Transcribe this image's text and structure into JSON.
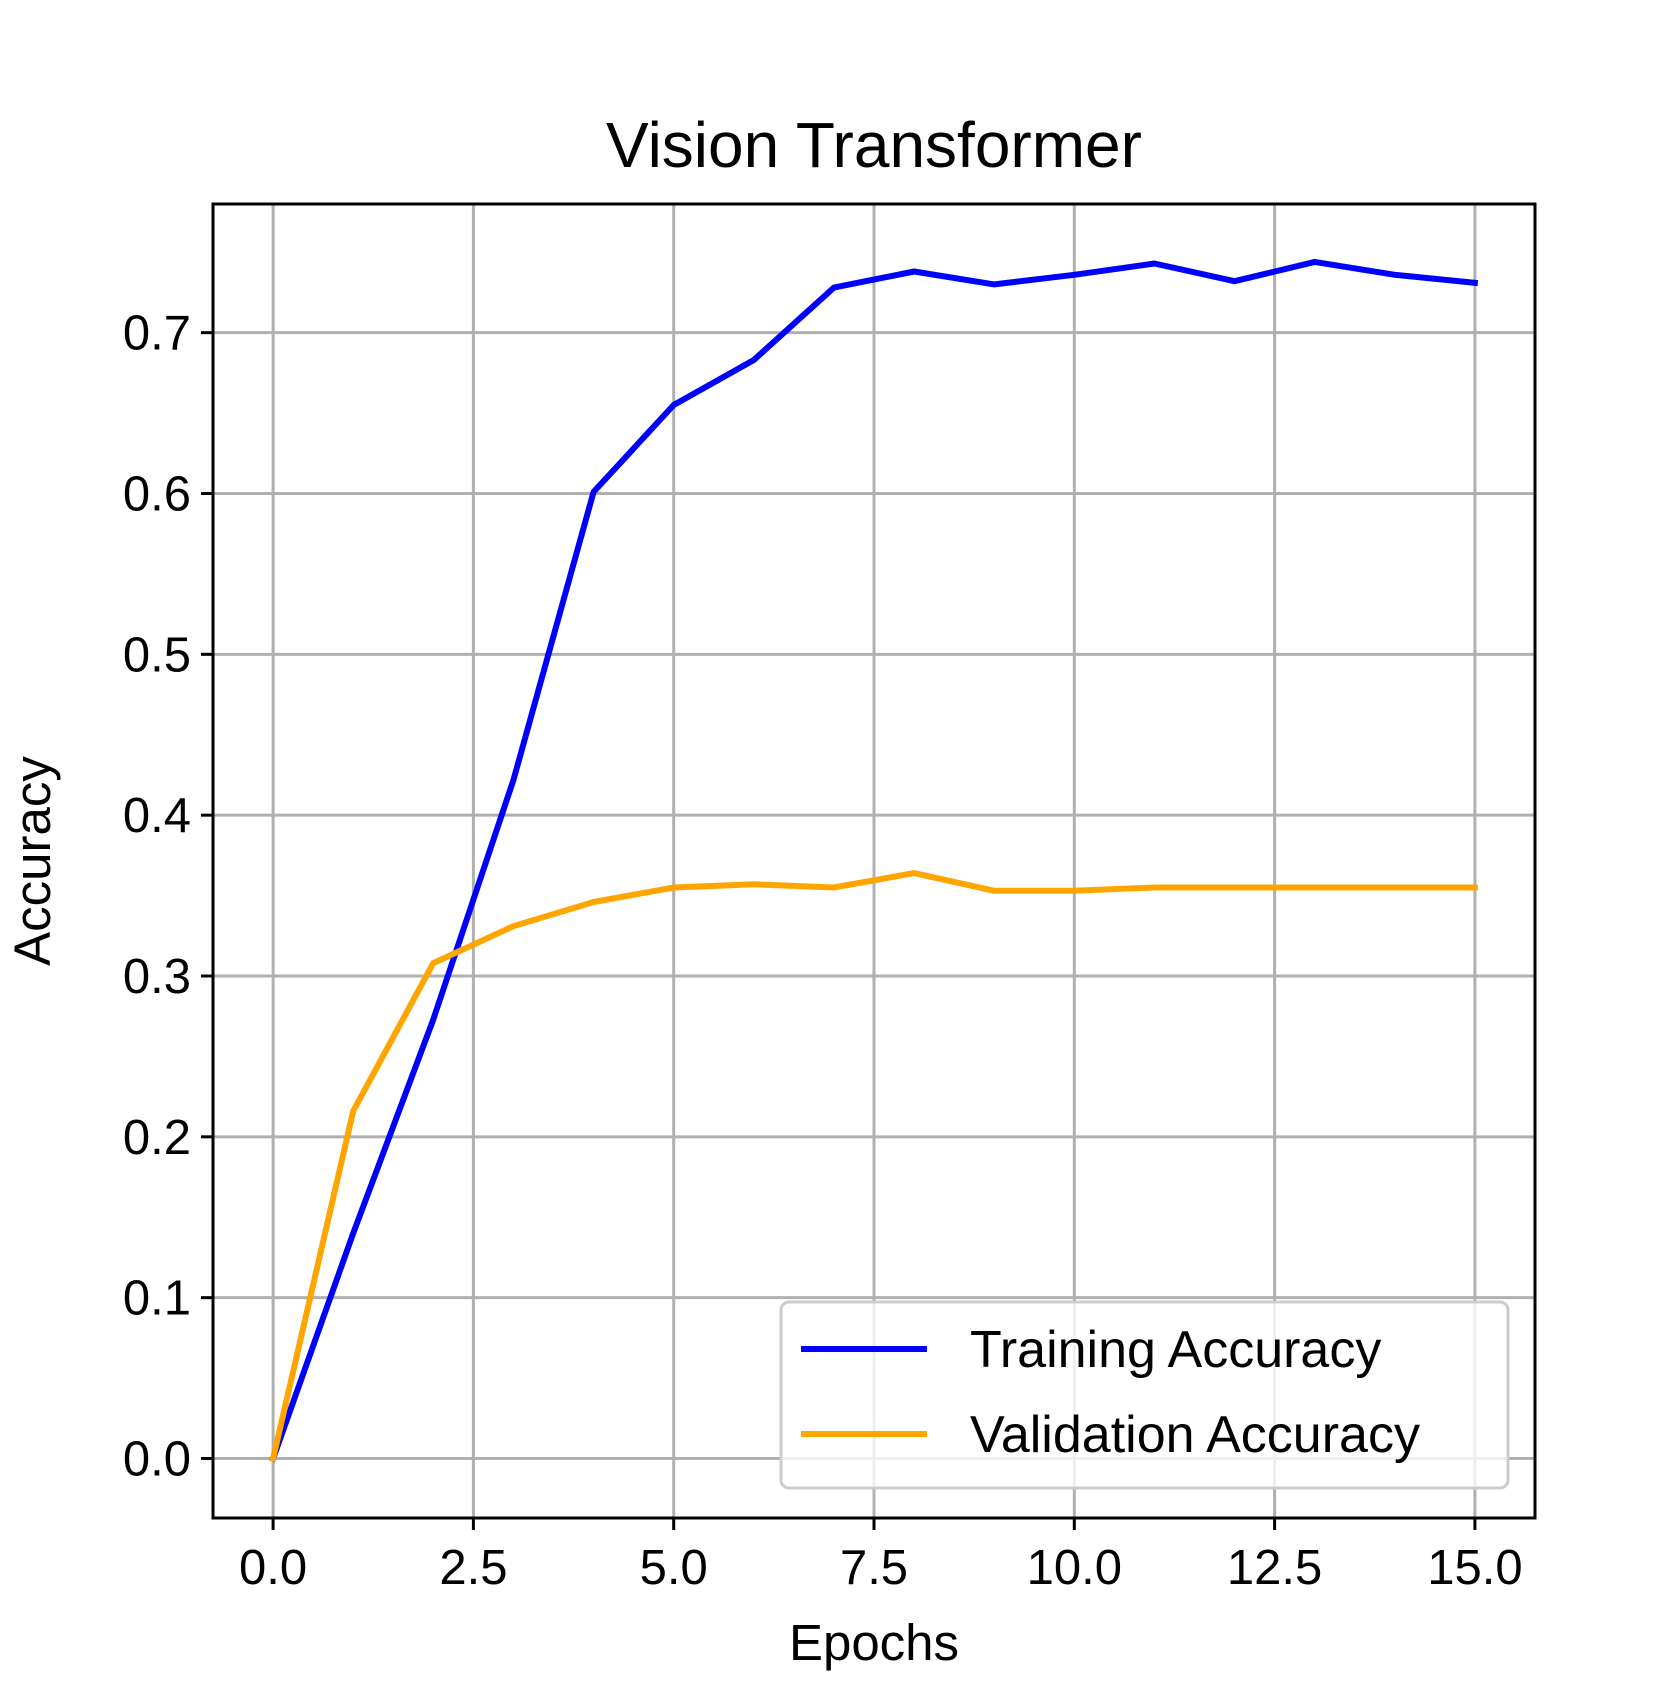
{
  "chart_data": {
    "type": "line",
    "title": "Vision Transformer",
    "xlabel": "Epochs",
    "ylabel": "Accuracy",
    "xlim": [
      -0.75,
      15.75
    ],
    "ylim": [
      -0.037,
      0.78
    ],
    "grid": true,
    "legend_position": "lower-right",
    "x_ticks": [
      0.0,
      2.5,
      5.0,
      7.5,
      10.0,
      12.5,
      15.0
    ],
    "x_tick_labels": [
      "0.0",
      "2.5",
      "5.0",
      "7.5",
      "10.0",
      "12.5",
      "15.0"
    ],
    "y_ticks": [
      0.0,
      0.1,
      0.2,
      0.3,
      0.4,
      0.5,
      0.6,
      0.7
    ],
    "y_tick_labels": [
      "0.0",
      "0.1",
      "0.2",
      "0.3",
      "0.4",
      "0.5",
      "0.6",
      "0.7"
    ],
    "x": [
      0,
      1,
      2,
      3,
      4,
      5,
      6,
      7,
      8,
      9,
      10,
      11,
      12,
      13,
      14,
      15
    ],
    "series": [
      {
        "name": "Training Accuracy",
        "color": "#0000ff",
        "values": [
          0.0,
          0.14,
          0.273,
          0.422,
          0.601,
          0.655,
          0.683,
          0.728,
          0.738,
          0.73,
          0.736,
          0.743,
          0.732,
          0.744,
          0.736,
          0.731
        ]
      },
      {
        "name": "Validation Accuracy",
        "color": "#ffa500",
        "values": [
          0.0,
          0.216,
          0.308,
          0.331,
          0.346,
          0.355,
          0.357,
          0.355,
          0.364,
          0.353,
          0.353,
          0.355,
          0.355,
          0.355,
          0.355,
          0.355
        ]
      }
    ]
  }
}
